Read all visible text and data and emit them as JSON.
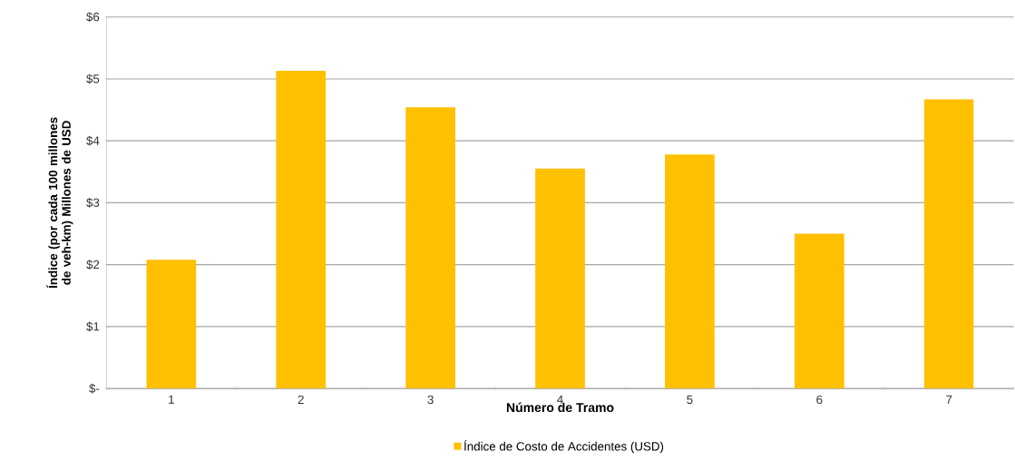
{
  "chart_data": {
    "type": "bar",
    "xlabel": "Número de Tramo",
    "ylabel": "Índice (por cada 100 millones de veh-km) Millones de USD",
    "categories": [
      "1",
      "2",
      "3",
      "4",
      "5",
      "6",
      "7"
    ],
    "series": [
      {
        "name": "Índice de Costo de Accidentes (USD)",
        "color": "#ffc000",
        "values": [
          2.08,
          5.13,
          4.54,
          3.55,
          3.78,
          2.5,
          4.67
        ]
      }
    ],
    "ylim": [
      0,
      6
    ],
    "yticks": [
      {
        "value": 0,
        "label": "$-"
      },
      {
        "value": 1,
        "label": "$1"
      },
      {
        "value": 2,
        "label": "$2"
      },
      {
        "value": 3,
        "label": "$3"
      },
      {
        "value": 4,
        "label": "$4"
      },
      {
        "value": 5,
        "label": "$5"
      },
      {
        "value": 6,
        "label": "$6"
      }
    ],
    "grid": "y",
    "legend": "bottom"
  }
}
